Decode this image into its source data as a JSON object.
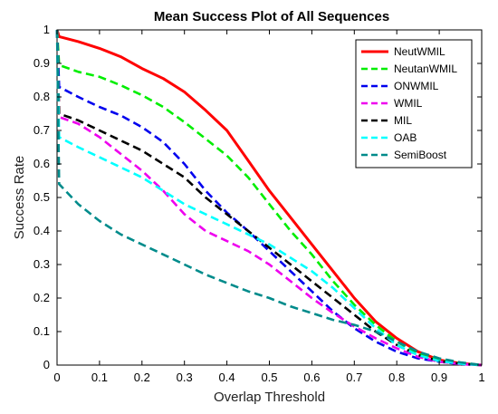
{
  "chart_data": {
    "type": "line",
    "title": "Mean Success Plot of All Sequences",
    "xlabel": "Overlap Threshold",
    "ylabel": "Success Rate",
    "xlim": [
      0,
      1
    ],
    "ylim": [
      0,
      1
    ],
    "xticks": [
      "0",
      "0.1",
      "0.2",
      "0.3",
      "0.4",
      "0.5",
      "0.6",
      "0.7",
      "0.8",
      "0.9",
      "1"
    ],
    "yticks": [
      "0",
      "0.1",
      "0.2",
      "0.3",
      "0.4",
      "0.5",
      "0.6",
      "0.7",
      "0.8",
      "0.9",
      "1"
    ],
    "grid": false,
    "legend_position": "top-right",
    "series": [
      {
        "name": "NeutWMIL",
        "color": "#ff0000",
        "style": "solid",
        "x": [
          0,
          0.005,
          0.05,
          0.1,
          0.15,
          0.2,
          0.25,
          0.3,
          0.35,
          0.4,
          0.45,
          0.5,
          0.55,
          0.6,
          0.65,
          0.7,
          0.75,
          0.8,
          0.85,
          0.9,
          0.95,
          1.0
        ],
        "y": [
          1.0,
          0.98,
          0.965,
          0.945,
          0.92,
          0.885,
          0.855,
          0.815,
          0.76,
          0.7,
          0.61,
          0.52,
          0.44,
          0.36,
          0.28,
          0.2,
          0.13,
          0.08,
          0.04,
          0.015,
          0.005,
          0.0
        ]
      },
      {
        "name": "NeutanWMIL",
        "color": "#00ee00",
        "style": "dashed",
        "x": [
          0,
          0.005,
          0.05,
          0.1,
          0.15,
          0.2,
          0.25,
          0.3,
          0.35,
          0.4,
          0.45,
          0.5,
          0.55,
          0.6,
          0.65,
          0.7,
          0.75,
          0.8,
          0.85,
          0.9,
          0.95,
          1.0
        ],
        "y": [
          1.0,
          0.895,
          0.875,
          0.86,
          0.835,
          0.805,
          0.77,
          0.725,
          0.675,
          0.625,
          0.56,
          0.48,
          0.4,
          0.33,
          0.25,
          0.18,
          0.12,
          0.07,
          0.035,
          0.015,
          0.005,
          0.0
        ]
      },
      {
        "name": "ONWMIL",
        "color": "#0000ee",
        "style": "dashed",
        "x": [
          0,
          0.005,
          0.05,
          0.1,
          0.15,
          0.2,
          0.25,
          0.3,
          0.35,
          0.4,
          0.45,
          0.5,
          0.55,
          0.6,
          0.65,
          0.7,
          0.75,
          0.8,
          0.85,
          0.9,
          0.95,
          1.0
        ],
        "y": [
          1.0,
          0.83,
          0.8,
          0.77,
          0.745,
          0.71,
          0.665,
          0.6,
          0.52,
          0.455,
          0.4,
          0.34,
          0.28,
          0.22,
          0.16,
          0.11,
          0.07,
          0.04,
          0.02,
          0.01,
          0.003,
          0.0
        ]
      },
      {
        "name": "WMIL",
        "color": "#ee00ee",
        "style": "dashed",
        "x": [
          0,
          0.005,
          0.05,
          0.1,
          0.15,
          0.2,
          0.25,
          0.3,
          0.35,
          0.4,
          0.45,
          0.5,
          0.55,
          0.6,
          0.65,
          0.7,
          0.75,
          0.8,
          0.85,
          0.9,
          0.95,
          1.0
        ],
        "y": [
          1.0,
          0.74,
          0.72,
          0.68,
          0.63,
          0.58,
          0.52,
          0.45,
          0.4,
          0.37,
          0.34,
          0.3,
          0.25,
          0.2,
          0.155,
          0.115,
          0.08,
          0.05,
          0.025,
          0.01,
          0.003,
          0.0
        ]
      },
      {
        "name": "MIL",
        "color": "#000000",
        "style": "dashed",
        "x": [
          0,
          0.005,
          0.05,
          0.1,
          0.15,
          0.2,
          0.25,
          0.3,
          0.35,
          0.4,
          0.45,
          0.5,
          0.55,
          0.6,
          0.65,
          0.7,
          0.75,
          0.8,
          0.85,
          0.9,
          0.95,
          1.0
        ],
        "y": [
          1.0,
          0.75,
          0.73,
          0.7,
          0.67,
          0.64,
          0.6,
          0.56,
          0.5,
          0.45,
          0.4,
          0.35,
          0.3,
          0.25,
          0.2,
          0.15,
          0.1,
          0.06,
          0.03,
          0.012,
          0.004,
          0.0
        ]
      },
      {
        "name": "OAB",
        "color": "#00ffff",
        "style": "dashed",
        "x": [
          0,
          0.005,
          0.05,
          0.1,
          0.15,
          0.2,
          0.25,
          0.3,
          0.35,
          0.4,
          0.45,
          0.5,
          0.55,
          0.6,
          0.65,
          0.7,
          0.75,
          0.8,
          0.85,
          0.9,
          0.95,
          1.0
        ],
        "y": [
          1.0,
          0.68,
          0.65,
          0.62,
          0.59,
          0.56,
          0.52,
          0.48,
          0.45,
          0.42,
          0.39,
          0.36,
          0.32,
          0.28,
          0.23,
          0.17,
          0.11,
          0.06,
          0.03,
          0.012,
          0.004,
          0.0
        ]
      },
      {
        "name": "SemiBoost",
        "color": "#008b8b",
        "style": "dashed",
        "x": [
          0,
          0.005,
          0.05,
          0.1,
          0.15,
          0.2,
          0.25,
          0.3,
          0.35,
          0.4,
          0.45,
          0.5,
          0.55,
          0.6,
          0.65,
          0.7,
          0.75,
          0.8,
          0.85,
          0.9,
          0.95,
          1.0
        ],
        "y": [
          1.0,
          0.54,
          0.48,
          0.43,
          0.39,
          0.36,
          0.33,
          0.3,
          0.27,
          0.245,
          0.22,
          0.2,
          0.175,
          0.155,
          0.135,
          0.12,
          0.1,
          0.07,
          0.04,
          0.02,
          0.008,
          0.0
        ]
      }
    ]
  }
}
